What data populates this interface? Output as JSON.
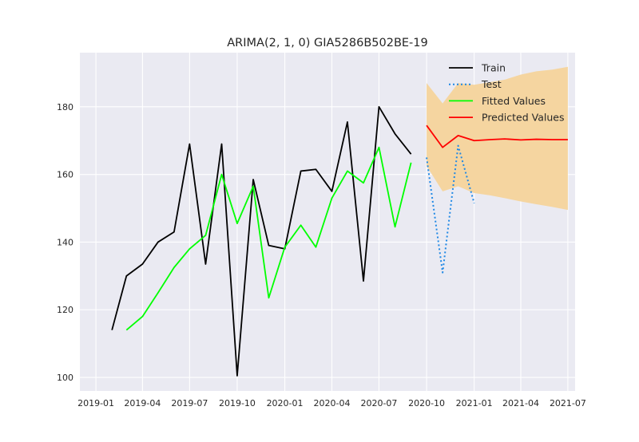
{
  "chart_data": {
    "type": "line",
    "title": "ARIMA(2, 1, 0) GIA5286B502BE-19",
    "xlabel": "",
    "ylabel": "",
    "xlim": [
      "2018-12-01",
      "2021-07-15"
    ],
    "ylim": [
      96,
      196
    ],
    "xticks": [
      "2019-01",
      "2019-04",
      "2019-07",
      "2019-10",
      "2020-01",
      "2020-04",
      "2020-07",
      "2020-10",
      "2021-01",
      "2021-04",
      "2021-07"
    ],
    "yticks": [
      100,
      120,
      140,
      160,
      180
    ],
    "grid": true,
    "legend_position": "top-right",
    "colors": {
      "background": "#eaeaf2",
      "grid": "#ffffff",
      "train": "#000000",
      "test": "#1f88e5",
      "fitted": "#00ff00",
      "predicted": "#ff0000",
      "interval": "#f5d5a0"
    },
    "series": [
      {
        "name": "Train",
        "style": "solid",
        "x": [
          "2019-02-01",
          "2019-03-01",
          "2019-04-01",
          "2019-05-01",
          "2019-06-01",
          "2019-07-01",
          "2019-08-01",
          "2019-09-01",
          "2019-10-01",
          "2019-11-01",
          "2019-12-01",
          "2020-01-01",
          "2020-02-01",
          "2020-03-01",
          "2020-04-01",
          "2020-05-01",
          "2020-06-01",
          "2020-07-01",
          "2020-08-01",
          "2020-09-01"
        ],
        "y": [
          114,
          130,
          133.5,
          140,
          143,
          169,
          133.5,
          169,
          100.5,
          158.5,
          139,
          138,
          161,
          161.5,
          155,
          175.5,
          128.5,
          180,
          172,
          166
        ]
      },
      {
        "name": "Test",
        "style": "dotted",
        "x": [
          "2020-10-01",
          "2020-11-01",
          "2020-12-01",
          "2021-01-01"
        ],
        "y": [
          165,
          131,
          168.5,
          151.5
        ]
      },
      {
        "name": "Fitted Values",
        "style": "solid",
        "x": [
          "2019-03-01",
          "2019-04-01",
          "2019-05-01",
          "2019-06-01",
          "2019-07-01",
          "2019-08-01",
          "2019-09-01",
          "2019-10-01",
          "2019-11-01",
          "2019-12-01",
          "2020-01-01",
          "2020-02-01",
          "2020-03-01",
          "2020-04-01",
          "2020-05-01",
          "2020-06-01",
          "2020-07-01",
          "2020-08-01",
          "2020-09-01"
        ],
        "y": [
          114,
          118,
          125,
          132.5,
          138,
          142,
          160,
          145.5,
          156.5,
          123.5,
          138.5,
          145,
          138.5,
          153,
          161,
          157.5,
          168,
          144.5,
          163.5
        ]
      },
      {
        "name": "Predicted Values",
        "style": "solid",
        "x": [
          "2020-10-01",
          "2020-11-01",
          "2020-12-01",
          "2021-01-01",
          "2021-02-01",
          "2021-03-01",
          "2021-04-01",
          "2021-05-01",
          "2021-06-01",
          "2021-07-01"
        ],
        "y": [
          174.5,
          168,
          171.5,
          170,
          170.3,
          170.5,
          170.2,
          170.4,
          170.3,
          170.3
        ]
      }
    ],
    "interval": {
      "x": [
        "2020-10-01",
        "2020-11-01",
        "2020-12-01",
        "2021-01-01",
        "2021-02-01",
        "2021-03-01",
        "2021-04-01",
        "2021-05-01",
        "2021-06-01",
        "2021-07-01"
      ],
      "lower": [
        162.5,
        155,
        156.5,
        154.5,
        153.8,
        153,
        152,
        151.2,
        150.4,
        149.5
      ],
      "upper": [
        187,
        181,
        187,
        186.5,
        187.3,
        188,
        189.5,
        190.5,
        191,
        191.8
      ]
    }
  }
}
